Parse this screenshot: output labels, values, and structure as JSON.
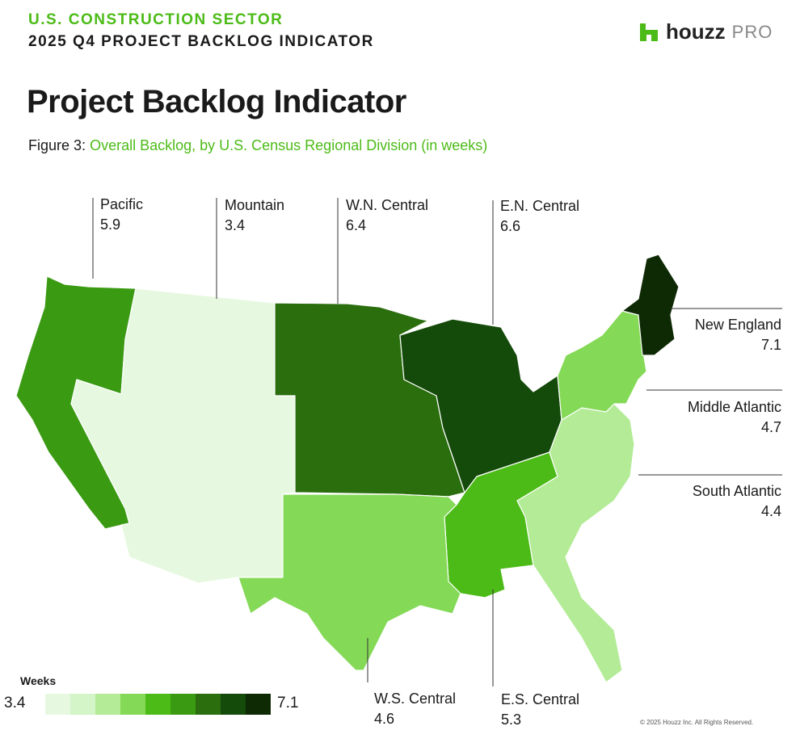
{
  "header": {
    "kicker": "U.S. CONSTRUCTION SECTOR",
    "subkicker": "2025 Q4 PROJECT BACKLOG INDICATOR",
    "title": "Project Backlog Indicator",
    "figure_label": "Figure 3:",
    "figure_caption": "Overall Backlog, by U.S. Census Regional Division (in weeks)"
  },
  "logo": {
    "word": "houzz",
    "suffix": "PRO",
    "icon": "houzz-house-icon",
    "color": "#4cbb17"
  },
  "regions": {
    "pacific": {
      "name": "Pacific",
      "value": 5.9
    },
    "mountain": {
      "name": "Mountain",
      "value": 3.4
    },
    "wn_central": {
      "name": "W.N. Central",
      "value": 6.4
    },
    "en_central": {
      "name": "E.N. Central",
      "value": 6.6
    },
    "new_england": {
      "name": "New England",
      "value": 7.1
    },
    "middle_atlantic": {
      "name": "Middle Atlantic",
      "value": 4.7
    },
    "south_atlantic": {
      "name": "South Atlantic",
      "value": 4.4
    },
    "ws_central": {
      "name": "W.S. Central",
      "value": 4.6
    },
    "es_central": {
      "name": "E.S. Central",
      "value": 5.3
    }
  },
  "legend": {
    "title": "Weeks",
    "min": "3.4",
    "max": "7.1",
    "min_value": 3.4,
    "max_value": 7.1,
    "colors": [
      "#e6f9e0",
      "#d3f5c8",
      "#b3eb96",
      "#84d957",
      "#4cbb17",
      "#3a9a12",
      "#2a6e0e",
      "#144a0a",
      "#0e2a05"
    ]
  },
  "footer": {
    "copyright": "© 2025 Houzz Inc. All Rights Reserved."
  }
}
